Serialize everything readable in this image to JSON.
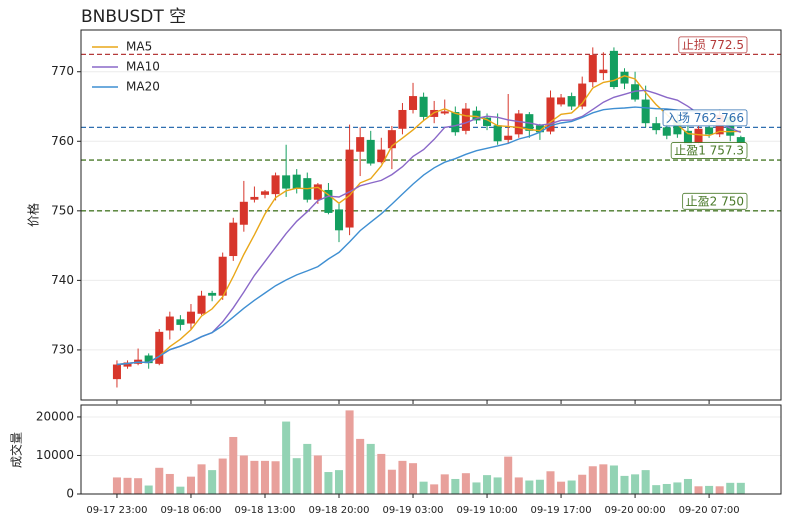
{
  "chart_data": [
    {
      "type": "candlestick",
      "title": "BNBUSDT  空",
      "ylabel": "价格",
      "ylim": [
        722.8,
        776
      ],
      "yticks": [
        730,
        740,
        750,
        760,
        770
      ],
      "grid": true,
      "legend": "upper left",
      "up_color": "#d7362b",
      "down_color": "#139e5f",
      "open": [
        725.8,
        727.6,
        728.0,
        729.2,
        728.0,
        732.8,
        734.4,
        733.8,
        735.2,
        738.2,
        737.8,
        743.5,
        748.0,
        751.6,
        752.3,
        752.4,
        755.1,
        755.2,
        754.7,
        751.6,
        753.0,
        750.2,
        747.6,
        758.5,
        760.2,
        757.0,
        759.0,
        761.8,
        764.5,
        766.4,
        763.5,
        764.0,
        764.2,
        761.5,
        764.4,
        763.4,
        762.3,
        760.2,
        761.0,
        763.9,
        762.3,
        761.4,
        765.3,
        766.5,
        765.0,
        768.5,
        769.8,
        773.0,
        770.0,
        768.2,
        766.0,
        762.6,
        762.0,
        762.8,
        761.5,
        759.8,
        762.0,
        761.0,
        763.5,
        760.6
      ],
      "high": [
        728.5,
        728.5,
        730.2,
        729.5,
        733.0,
        735.5,
        735.0,
        736.6,
        738.5,
        738.5,
        744.0,
        749.0,
        754.3,
        753.5,
        753.0,
        755.5,
        759.5,
        756.0,
        755.5,
        754.0,
        754.0,
        751.0,
        762.4,
        762.0,
        761.5,
        760.5,
        762.2,
        765.5,
        768.4,
        767.0,
        765.8,
        766.0,
        765.0,
        765.5,
        765.0,
        764.0,
        764.0,
        766.8,
        764.5,
        764.2,
        762.5,
        767.3,
        766.8,
        767.0,
        769.3,
        773.5,
        772.8,
        773.5,
        770.5,
        770.0,
        768.0,
        763.5,
        763.0,
        764.0,
        763.0,
        762.2,
        762.8,
        764.5,
        763.8,
        760.8
      ],
      "low": [
        724.6,
        727.3,
        727.8,
        727.3,
        727.8,
        731.5,
        732.8,
        733.0,
        735.0,
        737.0,
        737.2,
        742.8,
        747.0,
        751.2,
        751.8,
        751.5,
        752.0,
        752.5,
        751.2,
        751.0,
        749.5,
        745.5,
        746.5,
        755.0,
        756.5,
        756.8,
        756.0,
        761.0,
        764.0,
        763.0,
        762.6,
        763.8,
        760.8,
        761.0,
        762.5,
        761.6,
        759.5,
        759.6,
        760.5,
        760.5,
        760.2,
        761.0,
        765.0,
        764.5,
        764.6,
        767.8,
        768.8,
        767.5,
        767.5,
        765.7,
        762.0,
        761.0,
        760.3,
        760.5,
        759.0,
        759.5,
        760.5,
        760.6,
        760.0,
        759.5
      ],
      "close": [
        727.9,
        728.2,
        728.6,
        728.1,
        732.6,
        734.8,
        733.6,
        735.5,
        737.8,
        737.8,
        743.4,
        748.3,
        751.3,
        752.0,
        752.8,
        755.1,
        753.2,
        753.2,
        751.6,
        753.8,
        749.7,
        747.2,
        758.8,
        760.6,
        756.8,
        758.8,
        761.6,
        764.5,
        766.5,
        763.5,
        764.5,
        764.3,
        761.3,
        764.7,
        763.0,
        762.2,
        760.0,
        760.8,
        764.0,
        761.5,
        761.3,
        766.3,
        766.3,
        765.0,
        768.3,
        772.4,
        770.3,
        767.8,
        768.3,
        766.0,
        762.6,
        761.6,
        760.8,
        761.0,
        759.5,
        761.8,
        761.0,
        763.8,
        760.8,
        759.8
      ],
      "series": [
        {
          "name": "MA5",
          "color": "#e9a719",
          "values": [
            727.9,
            728.05,
            728.23,
            728.2,
            729.08,
            730.46,
            731.54,
            732.92,
            734.86,
            735.9,
            737.62,
            740.56,
            743.72,
            746.56,
            749.56,
            751.9,
            752.88,
            753.26,
            753.18,
            753.38,
            752.3,
            751.1,
            752.22,
            754.02,
            754.62,
            756.44,
            759.32,
            760.46,
            761.64,
            762.98,
            764.12,
            764.66,
            764.02,
            763.66,
            763.56,
            763.1,
            762.24,
            762.14,
            762.0,
            761.7,
            761.52,
            762.78,
            763.88,
            764.08,
            765.44,
            767.66,
            768.46,
            768.76,
            769.42,
            768.96,
            767.0,
            765.26,
            763.86,
            762.4,
            761.1,
            760.94,
            760.82,
            761.42,
            761.38,
            761.44
          ]
        },
        {
          "name": "MA10",
          "color": "#8a68c8",
          "values": [
            727.9,
            728.05,
            728.23,
            728.2,
            729.08,
            730.03,
            730.54,
            731.16,
            731.9,
            732.49,
            734.04,
            736.05,
            738.32,
            740.71,
            742.73,
            744.76,
            746.72,
            748.49,
            749.87,
            751.47,
            752.1,
            751.99,
            752.74,
            753.6,
            754.0,
            754.37,
            755.21,
            756.34,
            757.83,
            758.8,
            760.28,
            761.99,
            762.24,
            762.65,
            763.27,
            763.61,
            763.45,
            763.08,
            762.83,
            762.63,
            762.31,
            762.51,
            763.01,
            763.04,
            763.57,
            764.59,
            765.62,
            766.32,
            766.75,
            767.2,
            767.33,
            766.86,
            766.31,
            765.91,
            765.03,
            763.97,
            763.04,
            762.64,
            761.89,
            761.27
          ]
        },
        {
          "name": "MA20",
          "color": "#3f8fd2",
          "values": [
            727.9,
            728.05,
            728.23,
            728.2,
            729.08,
            730.03,
            730.54,
            731.16,
            731.9,
            732.49,
            733.48,
            734.72,
            735.99,
            737.14,
            738.18,
            739.24,
            740.06,
            740.79,
            741.36,
            741.98,
            743.07,
            744.02,
            745.53,
            747.16,
            748.37,
            749.57,
            750.97,
            752.42,
            753.85,
            755.14,
            756.19,
            756.99,
            757.49,
            758.13,
            758.64,
            758.99,
            759.33,
            759.71,
            760.33,
            760.72,
            761.3,
            762.25,
            762.63,
            762.85,
            763.42,
            764.1,
            764.54,
            764.7,
            764.79,
            764.92,
            764.82,
            764.69,
            764.66,
            764.48,
            764.3,
            764.28,
            764.33,
            764.48,
            764.32,
            764.24
          ]
        }
      ],
      "levels": [
        {
          "label": "止损 772.5",
          "value": 772.5,
          "color": "#b53a3a"
        },
        {
          "label": "入场 762-766",
          "value": 762,
          "color": "#2f6fb0"
        },
        {
          "label": "止盈1 757.3",
          "value": 757.3,
          "color": "#4a7a2a"
        },
        {
          "label": "止盈2 750",
          "value": 750,
          "color": "#4a7a2a"
        }
      ]
    },
    {
      "type": "bar",
      "ylabel": "成交量",
      "ylim": [
        0,
        23100
      ],
      "yticks": [
        0,
        10000,
        20000
      ],
      "grid": true,
      "up_color": "#e8a09b",
      "down_color": "#93d3b4",
      "categories": [
        "09-17 23:00",
        null,
        null,
        null,
        null,
        null,
        null,
        "09-18 06:00",
        null,
        null,
        null,
        null,
        null,
        null,
        "09-18 13:00",
        null,
        null,
        null,
        null,
        null,
        null,
        "09-18 20:00",
        null,
        null,
        null,
        null,
        null,
        null,
        "09-19 03:00",
        null,
        null,
        null,
        null,
        null,
        null,
        "09-19 10:00",
        null,
        null,
        null,
        null,
        null,
        null,
        "09-19 17:00",
        null,
        null,
        null,
        null,
        null,
        null,
        "09-20 00:00",
        null,
        null,
        null,
        null,
        null,
        null,
        "09-20 07:00",
        null,
        null,
        null
      ],
      "values": [
        4300,
        4200,
        4100,
        2200,
        6800,
        5200,
        1900,
        4500,
        7700,
        6200,
        9200,
        14800,
        10000,
        8600,
        8600,
        8500,
        18800,
        9300,
        13000,
        10000,
        5700,
        6200,
        21700,
        14300,
        13000,
        10400,
        6300,
        8600,
        8000,
        3200,
        2500,
        5100,
        3900,
        5400,
        3000,
        4900,
        4300,
        9700,
        4300,
        3500,
        3700,
        5900,
        3200,
        3500,
        5000,
        7200,
        7700,
        7400,
        4700,
        5100,
        6200,
        2300,
        2600,
        3000,
        3900,
        2000,
        2100,
        2000,
        2900,
        2900
      ]
    }
  ]
}
